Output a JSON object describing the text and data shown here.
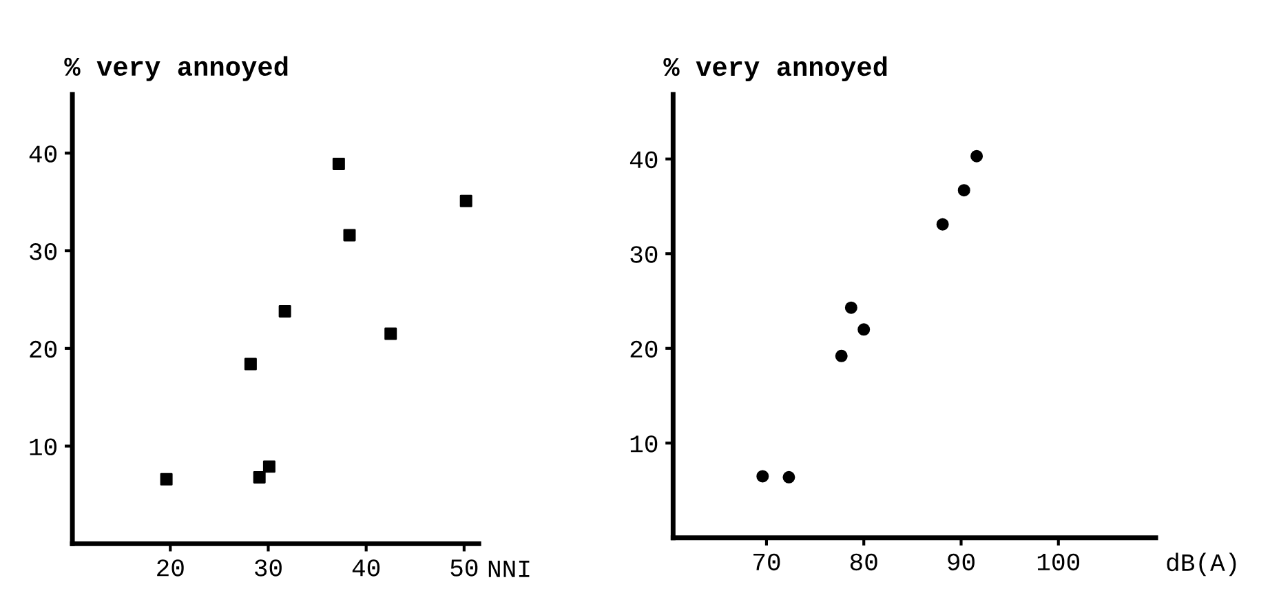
{
  "chart_data": [
    {
      "type": "scatter",
      "ylabel": "% very annoyed",
      "xlabel": "NNI",
      "marker": "square",
      "grid": false,
      "xlim": [
        10,
        51.5
      ],
      "ylim": [
        0,
        46
      ],
      "xticks": [
        20,
        30,
        40,
        50
      ],
      "yticks": [
        10,
        20,
        30,
        40
      ],
      "series": [
        {
          "color": "#000000",
          "x": [
            19.6,
            28.2,
            29.1,
            30.1,
            31.7,
            37.2,
            38.3,
            42.5,
            50.2
          ],
          "values": [
            6.6,
            18.4,
            6.8,
            7.9,
            23.8,
            38.9,
            31.6,
            21.5,
            35.1
          ]
        }
      ]
    },
    {
      "type": "scatter",
      "ylabel": "% very annoyed",
      "xlabel": "dB(A)",
      "marker": "circle",
      "grid": false,
      "xlim": [
        60.4,
        110
      ],
      "ylim": [
        0,
        46.8
      ],
      "xticks": [
        70,
        80,
        90,
        100
      ],
      "yticks": [
        10,
        20,
        30,
        40
      ],
      "series": [
        {
          "color": "#000000",
          "x": [
            69.6,
            72.3,
            77.7,
            78.7,
            80.0,
            88.1,
            90.3,
            91.6
          ],
          "values": [
            6.5,
            6.4,
            19.2,
            24.3,
            22.0,
            33.1,
            36.7,
            40.3
          ]
        }
      ]
    }
  ]
}
